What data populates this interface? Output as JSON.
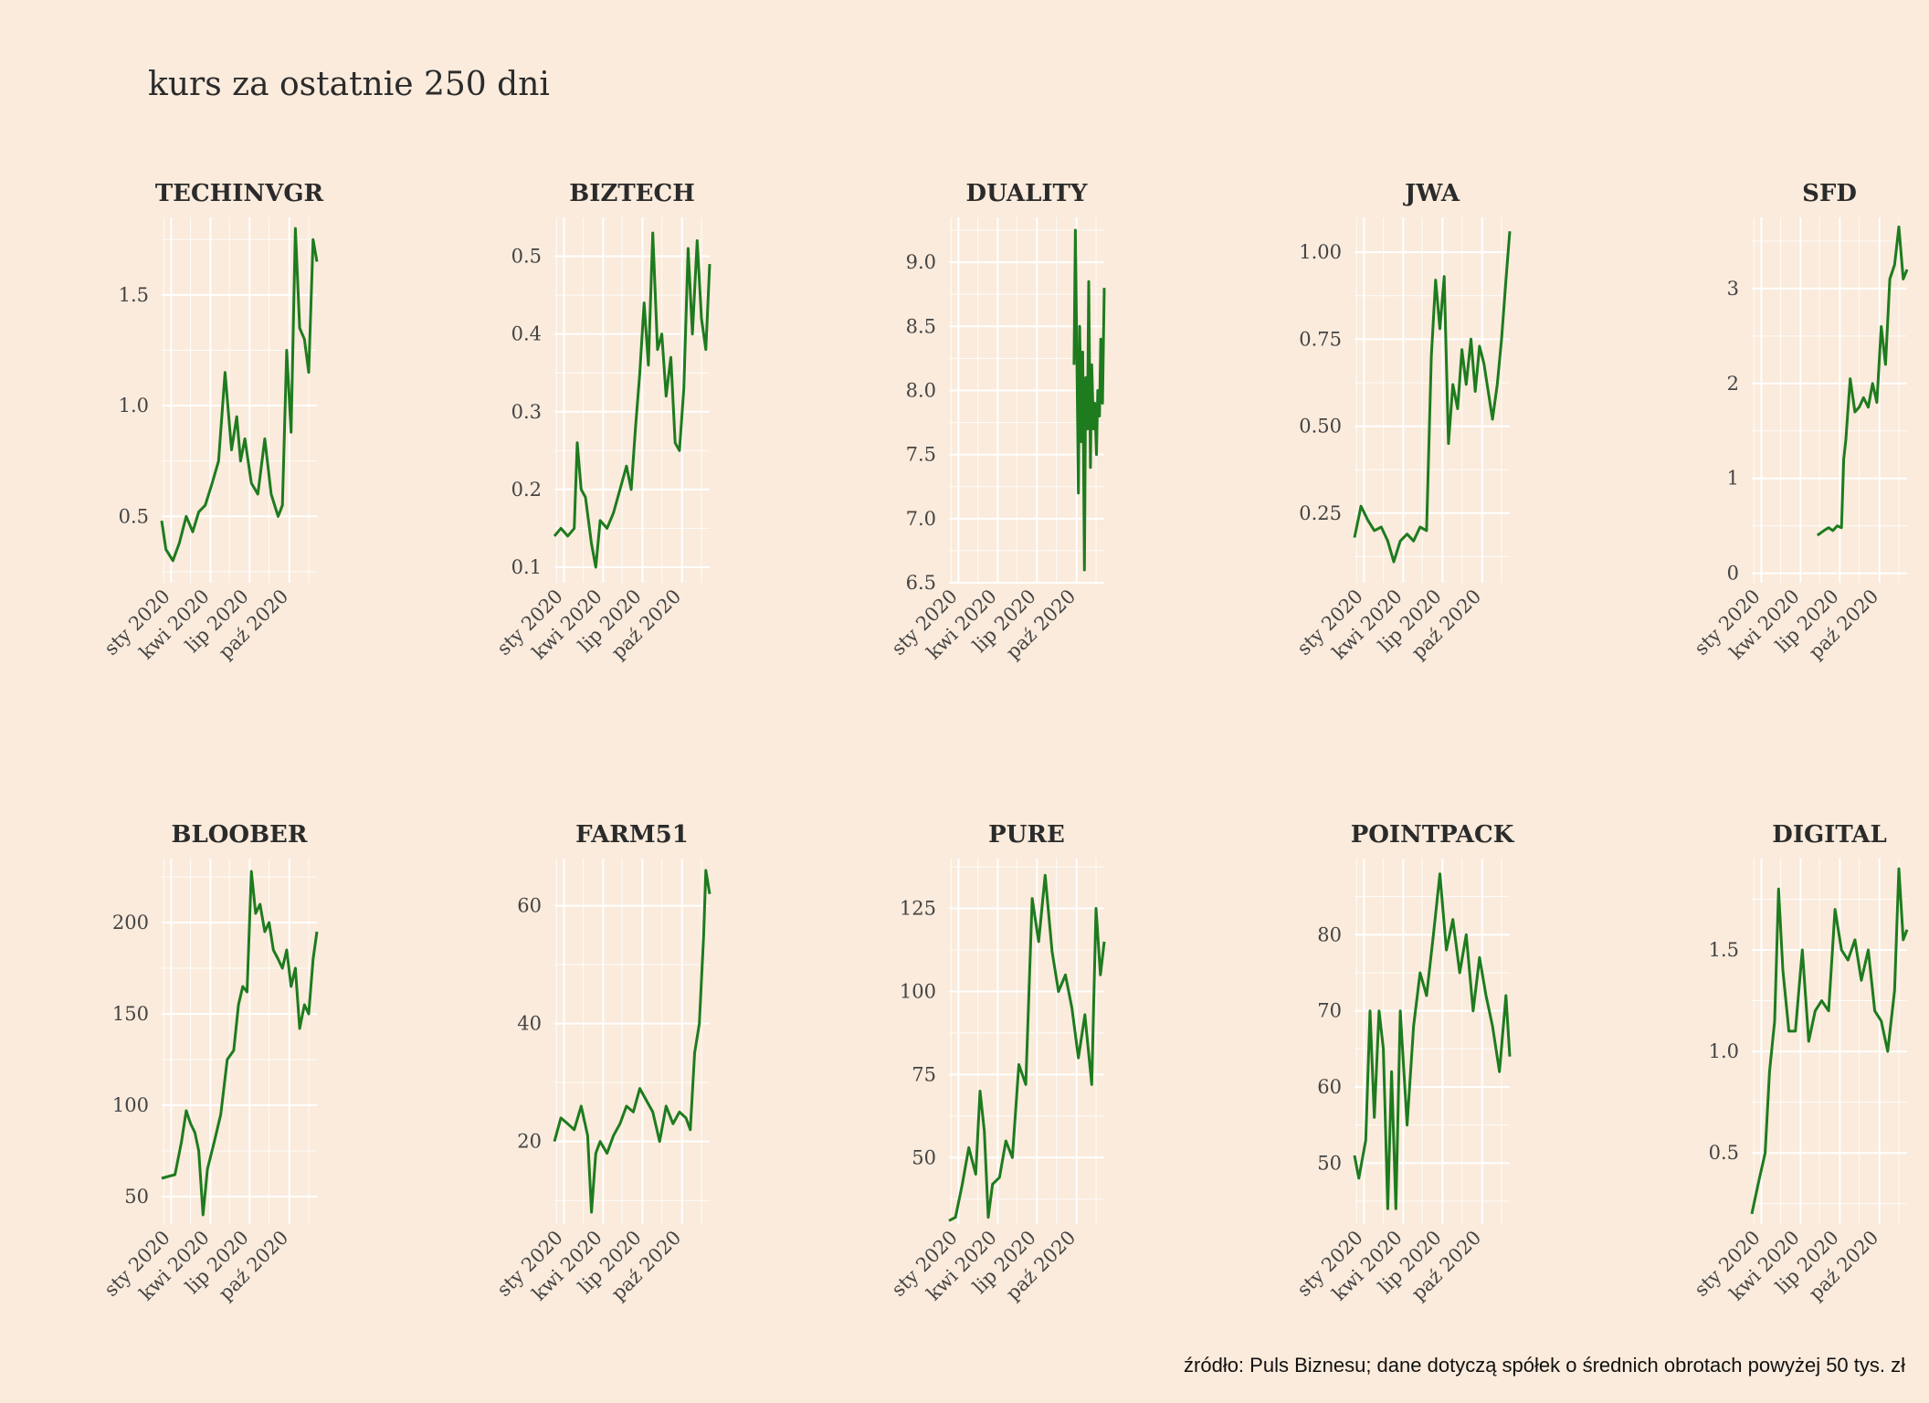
{
  "title": "kurs za ostatnie 250 dni",
  "caption": "źródło: Puls Biznesu; dane dotyczą spółek o średnich obrotach powyżej 50 tys. zł",
  "line_color": "#1e7b1e",
  "background_color": "#faebdc",
  "chart_data": [
    {
      "type": "line",
      "title": "TECHINVGR",
      "x_ticks": [
        "sty 2020",
        "kwi 2020",
        "lip 2020",
        "paź 2020"
      ],
      "y_ticks": [
        0.5,
        1.0,
        1.5
      ],
      "y_tick_labels": [
        "0.5",
        "1.0",
        "1.5"
      ],
      "ylim": [
        0.2,
        1.85
      ],
      "xlim": [
        "2019-12-10",
        "2020-12-04"
      ],
      "x": [
        "2019-12-10",
        "2019-12-20",
        "2020-01-05",
        "2020-01-20",
        "2020-02-05",
        "2020-02-20",
        "2020-03-05",
        "2020-03-20",
        "2020-04-05",
        "2020-04-20",
        "2020-05-05",
        "2020-05-20",
        "2020-06-01",
        "2020-06-10",
        "2020-06-20",
        "2020-07-05",
        "2020-07-20",
        "2020-08-05",
        "2020-08-20",
        "2020-09-05",
        "2020-09-15",
        "2020-09-25",
        "2020-10-05",
        "2020-10-15",
        "2020-10-25",
        "2020-11-05",
        "2020-11-15",
        "2020-11-25",
        "2020-12-04"
      ],
      "y": [
        0.48,
        0.35,
        0.3,
        0.38,
        0.5,
        0.43,
        0.52,
        0.55,
        0.65,
        0.75,
        1.15,
        0.8,
        0.95,
        0.75,
        0.85,
        0.65,
        0.6,
        0.85,
        0.6,
        0.5,
        0.55,
        1.25,
        0.88,
        1.8,
        1.35,
        1.3,
        1.15,
        1.75,
        1.65
      ]
    },
    {
      "type": "line",
      "title": "BIZTECH",
      "x_ticks": [
        "sty 2020",
        "kwi 2020",
        "lip 2020",
        "paź 2020"
      ],
      "y_ticks": [
        0.1,
        0.2,
        0.3,
        0.4,
        0.5
      ],
      "y_tick_labels": [
        "0.1",
        "0.2",
        "0.3",
        "0.4",
        "0.5"
      ],
      "ylim": [
        0.08,
        0.55
      ],
      "xlim": [
        "2019-12-10",
        "2020-12-04"
      ],
      "x": [
        "2019-12-10",
        "2019-12-25",
        "2020-01-10",
        "2020-01-25",
        "2020-02-01",
        "2020-02-10",
        "2020-02-20",
        "2020-03-05",
        "2020-03-15",
        "2020-03-25",
        "2020-04-10",
        "2020-04-25",
        "2020-05-10",
        "2020-05-25",
        "2020-06-05",
        "2020-06-15",
        "2020-06-25",
        "2020-07-05",
        "2020-07-15",
        "2020-07-25",
        "2020-08-05",
        "2020-08-15",
        "2020-08-25",
        "2020-09-05",
        "2020-09-15",
        "2020-09-25",
        "2020-10-05",
        "2020-10-15",
        "2020-10-25",
        "2020-11-05",
        "2020-11-15",
        "2020-11-25",
        "2020-12-04"
      ],
      "y": [
        0.14,
        0.15,
        0.14,
        0.15,
        0.26,
        0.2,
        0.19,
        0.13,
        0.1,
        0.16,
        0.15,
        0.17,
        0.2,
        0.23,
        0.2,
        0.28,
        0.35,
        0.44,
        0.36,
        0.53,
        0.38,
        0.4,
        0.32,
        0.37,
        0.26,
        0.25,
        0.33,
        0.51,
        0.4,
        0.52,
        0.42,
        0.38,
        0.49
      ]
    },
    {
      "type": "line",
      "title": "DUALITY",
      "x_ticks": [
        "sty 2020",
        "kwi 2020",
        "lip 2020",
        "paź 2020"
      ],
      "y_ticks": [
        6.5,
        7.0,
        7.5,
        8.0,
        8.5,
        9.0
      ],
      "y_tick_labels": [
        "6.5",
        "7.0",
        "7.5",
        "8.0",
        "8.5",
        "9.0"
      ],
      "ylim": [
        6.5,
        9.35
      ],
      "xlim": [
        "2019-12-10",
        "2020-12-04"
      ],
      "x": [
        "2020-09-25",
        "2020-09-28",
        "2020-10-01",
        "2020-10-05",
        "2020-10-08",
        "2020-10-12",
        "2020-10-15",
        "2020-10-19",
        "2020-10-22",
        "2020-10-26",
        "2020-10-29",
        "2020-11-02",
        "2020-11-05",
        "2020-11-09",
        "2020-11-12",
        "2020-11-16",
        "2020-11-19",
        "2020-11-23",
        "2020-11-26",
        "2020-11-30",
        "2020-12-04"
      ],
      "y": [
        8.2,
        9.25,
        8.4,
        7.2,
        8.5,
        7.6,
        8.3,
        6.6,
        8.1,
        7.7,
        8.85,
        7.4,
        8.2,
        7.7,
        7.9,
        7.5,
        8.0,
        7.8,
        8.4,
        7.9,
        8.8
      ]
    },
    {
      "type": "line",
      "title": "JWA",
      "x_ticks": [
        "sty 2020",
        "kwi 2020",
        "lip 2020",
        "paź 2020"
      ],
      "y_ticks": [
        0.25,
        0.5,
        0.75,
        1.0
      ],
      "y_tick_labels": [
        "0.25",
        "0.50",
        "0.75",
        "1.00"
      ],
      "ylim": [
        0.05,
        1.1
      ],
      "xlim": [
        "2019-12-10",
        "2020-12-04"
      ],
      "x": [
        "2019-12-10",
        "2019-12-25",
        "2020-01-10",
        "2020-01-25",
        "2020-02-10",
        "2020-02-25",
        "2020-03-10",
        "2020-03-25",
        "2020-04-10",
        "2020-04-25",
        "2020-05-10",
        "2020-05-25",
        "2020-06-05",
        "2020-06-15",
        "2020-06-25",
        "2020-07-05",
        "2020-07-15",
        "2020-07-25",
        "2020-08-05",
        "2020-08-15",
        "2020-08-25",
        "2020-09-05",
        "2020-09-15",
        "2020-09-25",
        "2020-10-05",
        "2020-10-15",
        "2020-10-25",
        "2020-11-05",
        "2020-11-15",
        "2020-11-25",
        "2020-12-04"
      ],
      "y": [
        0.18,
        0.27,
        0.23,
        0.2,
        0.21,
        0.17,
        0.11,
        0.17,
        0.19,
        0.17,
        0.21,
        0.2,
        0.7,
        0.92,
        0.78,
        0.93,
        0.45,
        0.62,
        0.55,
        0.72,
        0.62,
        0.75,
        0.6,
        0.73,
        0.68,
        0.6,
        0.52,
        0.62,
        0.75,
        0.92,
        1.06
      ]
    },
    {
      "type": "line",
      "title": "SFD",
      "x_ticks": [
        "sty 2020",
        "kwi 2020",
        "lip 2020",
        "paź 2020"
      ],
      "y_ticks": [
        0,
        1,
        2,
        3
      ],
      "y_tick_labels": [
        "0",
        "1",
        "2",
        "3"
      ],
      "ylim": [
        -0.1,
        3.75
      ],
      "xlim": [
        "2019-12-10",
        "2020-12-04"
      ],
      "x": [
        "2020-05-10",
        "2020-05-25",
        "2020-06-05",
        "2020-06-15",
        "2020-06-25",
        "2020-07-05",
        "2020-07-10",
        "2020-07-15",
        "2020-07-25",
        "2020-08-05",
        "2020-08-15",
        "2020-08-25",
        "2020-09-05",
        "2020-09-15",
        "2020-09-25",
        "2020-10-05",
        "2020-10-15",
        "2020-10-25",
        "2020-11-05",
        "2020-11-15",
        "2020-11-25",
        "2020-12-04"
      ],
      "y": [
        0.4,
        0.45,
        0.48,
        0.45,
        0.5,
        0.48,
        1.2,
        1.4,
        2.05,
        1.7,
        1.75,
        1.85,
        1.75,
        2.0,
        1.8,
        2.6,
        2.2,
        3.1,
        3.25,
        3.65,
        3.1,
        3.2
      ]
    },
    {
      "type": "line",
      "title": "BLOOBER",
      "x_ticks": [
        "sty 2020",
        "kwi 2020",
        "lip 2020",
        "paź 2020"
      ],
      "y_ticks": [
        50,
        100,
        150,
        200
      ],
      "y_tick_labels": [
        "50",
        "100",
        "150",
        "200"
      ],
      "ylim": [
        35,
        235
      ],
      "xlim": [
        "2019-12-10",
        "2020-12-04"
      ],
      "x": [
        "2019-12-10",
        "2019-12-25",
        "2020-01-10",
        "2020-01-25",
        "2020-02-05",
        "2020-02-15",
        "2020-02-25",
        "2020-03-05",
        "2020-03-15",
        "2020-03-25",
        "2020-04-10",
        "2020-04-25",
        "2020-05-10",
        "2020-05-25",
        "2020-06-05",
        "2020-06-15",
        "2020-06-25",
        "2020-07-05",
        "2020-07-15",
        "2020-07-25",
        "2020-08-05",
        "2020-08-15",
        "2020-08-25",
        "2020-09-05",
        "2020-09-15",
        "2020-09-25",
        "2020-10-05",
        "2020-10-15",
        "2020-10-25",
        "2020-11-05",
        "2020-11-15",
        "2020-11-25",
        "2020-12-04"
      ],
      "y": [
        60,
        61,
        62,
        80,
        97,
        90,
        85,
        75,
        40,
        65,
        80,
        95,
        125,
        130,
        155,
        165,
        162,
        228,
        205,
        210,
        195,
        200,
        185,
        180,
        175,
        185,
        165,
        175,
        142,
        155,
        150,
        180,
        195
      ]
    },
    {
      "type": "line",
      "title": "FARM51",
      "x_ticks": [
        "sty 2020",
        "kwi 2020",
        "lip 2020",
        "paź 2020"
      ],
      "y_ticks": [
        20,
        40,
        60
      ],
      "y_tick_labels": [
        "20",
        "40",
        "60"
      ],
      "ylim": [
        6,
        68
      ],
      "xlim": [
        "2019-12-10",
        "2020-12-04"
      ],
      "x": [
        "2019-12-10",
        "2019-12-25",
        "2020-01-10",
        "2020-01-25",
        "2020-02-10",
        "2020-02-25",
        "2020-03-05",
        "2020-03-15",
        "2020-03-25",
        "2020-04-10",
        "2020-04-25",
        "2020-05-10",
        "2020-05-25",
        "2020-06-10",
        "2020-06-25",
        "2020-07-10",
        "2020-07-25",
        "2020-08-10",
        "2020-08-25",
        "2020-09-10",
        "2020-09-25",
        "2020-10-10",
        "2020-10-20",
        "2020-10-30",
        "2020-11-10",
        "2020-11-20",
        "2020-11-25",
        "2020-12-04"
      ],
      "y": [
        20,
        24,
        23,
        22,
        26,
        21,
        8,
        18,
        20,
        18,
        21,
        23,
        26,
        25,
        29,
        27,
        25,
        20,
        26,
        23,
        25,
        24,
        22,
        35,
        40,
        55,
        66,
        62
      ]
    },
    {
      "type": "line",
      "title": "PURE",
      "x_ticks": [
        "sty 2020",
        "kwi 2020",
        "lip 2020",
        "paź 2020"
      ],
      "y_ticks": [
        50,
        75,
        100,
        125
      ],
      "y_tick_labels": [
        "50",
        "75",
        "100",
        "125"
      ],
      "ylim": [
        30,
        140
      ],
      "xlim": [
        "2019-12-10",
        "2020-12-04"
      ],
      "x": [
        "2019-12-10",
        "2019-12-25",
        "2020-01-10",
        "2020-01-25",
        "2020-02-10",
        "2020-02-20",
        "2020-03-01",
        "2020-03-10",
        "2020-03-20",
        "2020-04-05",
        "2020-04-20",
        "2020-05-05",
        "2020-05-20",
        "2020-06-05",
        "2020-06-20",
        "2020-07-05",
        "2020-07-20",
        "2020-08-05",
        "2020-08-20",
        "2020-09-05",
        "2020-09-20",
        "2020-10-05",
        "2020-10-20",
        "2020-11-05",
        "2020-11-15",
        "2020-11-25",
        "2020-12-04"
      ],
      "y": [
        31,
        32,
        42,
        53,
        45,
        70,
        58,
        32,
        42,
        44,
        55,
        50,
        78,
        72,
        128,
        115,
        135,
        112,
        100,
        105,
        95,
        80,
        93,
        72,
        125,
        105,
        115
      ]
    },
    {
      "type": "line",
      "title": "POINTPACK",
      "x_ticks": [
        "sty 2020",
        "kwi 2020",
        "lip 2020",
        "paź 2020"
      ],
      "y_ticks": [
        50,
        60,
        70,
        80
      ],
      "y_tick_labels": [
        "50",
        "60",
        "70",
        "80"
      ],
      "ylim": [
        42,
        90
      ],
      "xlim": [
        "2019-12-10",
        "2020-12-04"
      ],
      "x": [
        "2019-12-10",
        "2019-12-20",
        "2020-01-05",
        "2020-01-15",
        "2020-01-25",
        "2020-02-05",
        "2020-02-15",
        "2020-02-25",
        "2020-03-05",
        "2020-03-15",
        "2020-03-25",
        "2020-04-10",
        "2020-04-25",
        "2020-05-10",
        "2020-05-25",
        "2020-06-10",
        "2020-06-25",
        "2020-07-10",
        "2020-07-25",
        "2020-08-10",
        "2020-08-25",
        "2020-09-10",
        "2020-09-25",
        "2020-10-10",
        "2020-10-25",
        "2020-11-10",
        "2020-11-25",
        "2020-12-04"
      ],
      "y": [
        51,
        48,
        53,
        70,
        56,
        70,
        65,
        44,
        62,
        44,
        70,
        55,
        68,
        75,
        72,
        80,
        88,
        78,
        82,
        75,
        80,
        70,
        77,
        72,
        68,
        62,
        72,
        64
      ]
    },
    {
      "type": "line",
      "title": "DIGITAL",
      "x_ticks": [
        "sty 2020",
        "kwi 2020",
        "lip 2020",
        "paź 2020"
      ],
      "y_ticks": [
        0.5,
        1.0,
        1.5
      ],
      "y_tick_labels": [
        "0.5",
        "1.0",
        "1.5"
      ],
      "ylim": [
        0.15,
        1.95
      ],
      "xlim": [
        "2019-12-10",
        "2020-12-04"
      ],
      "x": [
        "2019-12-10",
        "2019-12-25",
        "2020-01-10",
        "2020-01-20",
        "2020-02-01",
        "2020-02-10",
        "2020-02-20",
        "2020-03-05",
        "2020-03-20",
        "2020-04-05",
        "2020-04-20",
        "2020-05-05",
        "2020-05-20",
        "2020-06-05",
        "2020-06-20",
        "2020-07-05",
        "2020-07-20",
        "2020-08-05",
        "2020-08-20",
        "2020-09-05",
        "2020-09-20",
        "2020-10-05",
        "2020-10-20",
        "2020-11-05",
        "2020-11-15",
        "2020-11-25",
        "2020-12-04"
      ],
      "y": [
        0.2,
        0.35,
        0.5,
        0.9,
        1.15,
        1.8,
        1.4,
        1.1,
        1.1,
        1.5,
        1.05,
        1.2,
        1.25,
        1.2,
        1.7,
        1.5,
        1.45,
        1.55,
        1.35,
        1.5,
        1.2,
        1.15,
        1.0,
        1.3,
        1.9,
        1.55,
        1.6
      ]
    }
  ]
}
